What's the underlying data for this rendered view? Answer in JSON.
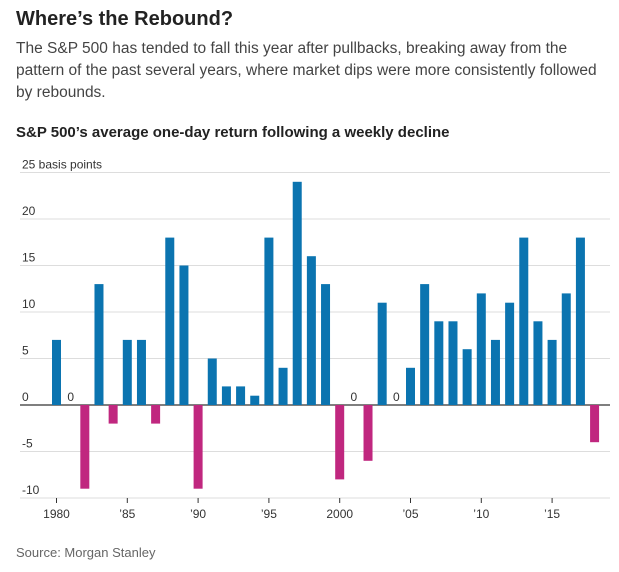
{
  "title": "Where’s the Rebound?",
  "subtitle": "The S&P 500 has tended to fall this year after pullbacks, breaking away from the pattern of the past several years, where market dips were more consistently followed by rebounds.",
  "source": "Source: Morgan Stanley",
  "colors": {
    "positive": "#0b74b0",
    "negative": "#c0277f",
    "grid": "#dddddd",
    "axis": "#333333"
  },
  "chart_data": {
    "type": "bar",
    "title": "S&P 500’s average one-day return following a weekly decline",
    "ylabel": "basis points",
    "ylim": [
      -10,
      25
    ],
    "y_ticks": [
      -10,
      -5,
      0,
      5,
      10,
      15,
      20,
      25
    ],
    "y_tick_labels": [
      "-10",
      "-5",
      "0",
      "5",
      "10",
      "15",
      "20",
      "25 basis points"
    ],
    "x_ticks": [
      1980,
      1985,
      1990,
      1995,
      2000,
      2005,
      2010,
      2015
    ],
    "x_tick_labels": [
      "1980",
      "’85",
      "’90",
      "’95",
      "2000",
      "’05",
      "’10",
      "’15"
    ],
    "grid": true,
    "x": [
      1980,
      1981,
      1982,
      1983,
      1984,
      1985,
      1986,
      1987,
      1988,
      1989,
      1990,
      1991,
      1992,
      1993,
      1994,
      1995,
      1996,
      1997,
      1998,
      1999,
      2000,
      2001,
      2002,
      2003,
      2004,
      2005,
      2006,
      2007,
      2008,
      2009,
      2010,
      2011,
      2012,
      2013,
      2014,
      2015,
      2016,
      2017,
      2018
    ],
    "values": [
      7,
      0,
      -9,
      13,
      -2,
      7,
      7,
      -2,
      18,
      15,
      -9,
      5,
      2,
      2,
      1,
      18,
      4,
      24,
      16,
      13,
      -8,
      0,
      -6,
      11,
      0,
      4,
      13,
      9,
      9,
      6,
      12,
      7,
      11,
      18,
      9,
      7,
      12,
      18,
      -4
    ],
    "zero_labels": [
      "0",
      "0",
      "0"
    ]
  }
}
